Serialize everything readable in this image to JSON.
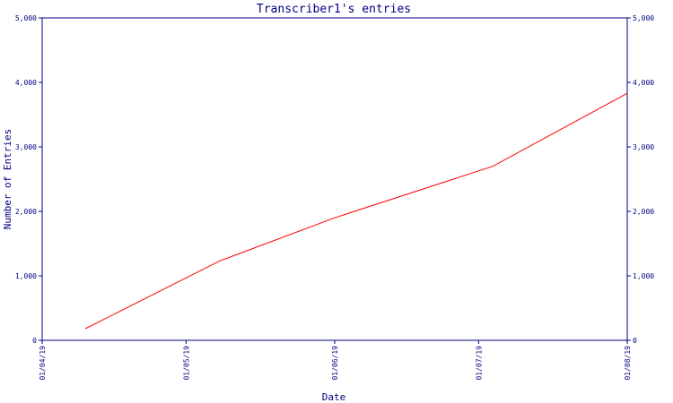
{
  "chart_data": {
    "type": "line",
    "title": "Transcriber1's entries",
    "xlabel": "Date",
    "ylabel": "Number of Entries",
    "x_domain": [
      "2019-04-01",
      "2019-08-01"
    ],
    "x_ticks": [
      {
        "date": "2019-04-01",
        "label": "01/04/19"
      },
      {
        "date": "2019-05-01",
        "label": "01/05/19"
      },
      {
        "date": "2019-06-01",
        "label": "01/06/19"
      },
      {
        "date": "2019-07-01",
        "label": "01/07/19"
      },
      {
        "date": "2019-08-01",
        "label": "01/08/19"
      }
    ],
    "ylim": [
      0,
      5000
    ],
    "y_ticks": [
      {
        "value": 0,
        "label": "0"
      },
      {
        "value": 1000,
        "label": "1,000"
      },
      {
        "value": 2000,
        "label": "2,000"
      },
      {
        "value": 3000,
        "label": "3,000"
      },
      {
        "value": 4000,
        "label": "4,000"
      },
      {
        "value": 5000,
        "label": "5,000"
      }
    ],
    "grid": false,
    "series": [
      {
        "color": "#ff0000",
        "points": [
          {
            "x": "2019-04-10",
            "y": 180
          },
          {
            "x": "2019-05-08",
            "y": 1230
          },
          {
            "x": "2019-06-01",
            "y": 1900
          },
          {
            "x": "2019-07-04",
            "y": 2700
          },
          {
            "x": "2019-08-01",
            "y": 3830
          }
        ]
      }
    ],
    "axis_color": "#000080",
    "text_color": "#000080"
  }
}
